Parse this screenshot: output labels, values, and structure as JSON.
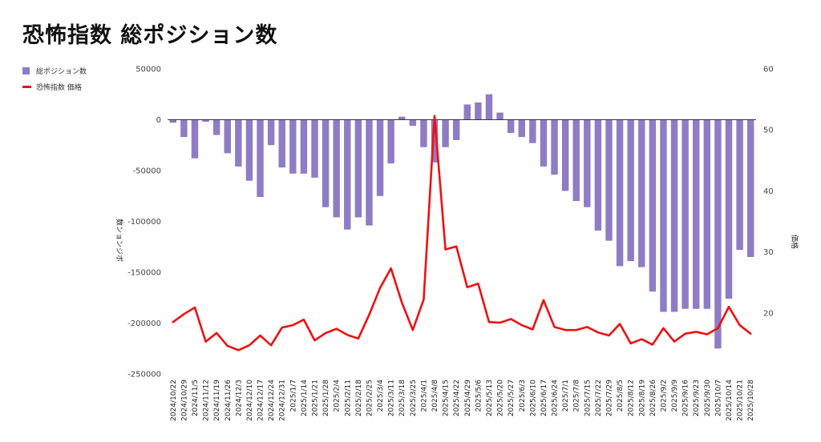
{
  "page": {
    "title": "恐怖指数 総ポジション数"
  },
  "legend": {
    "bar_label": "総ポジション数",
    "line_label": "恐怖指数 価格"
  },
  "chart_data": {
    "type": "bar+line",
    "title": "恐怖指数 総ポジション数",
    "ylabel_left": "数ンョンジボ",
    "ylabel_right": "価格",
    "ylim_left": [
      -250000,
      50000
    ],
    "ylim_right": [
      10,
      60
    ],
    "yticks_left": [
      50000,
      0,
      -50000,
      -100000,
      -150000,
      -200000,
      -250000
    ],
    "yticks_right": [
      60,
      50,
      40,
      30,
      20
    ],
    "grid": false,
    "categories": [
      "2024/10/22",
      "2024/10/29",
      "2024/11/5",
      "2024/11/12",
      "2024/11/19",
      "2024/11/26",
      "2024/12/3",
      "2024/12/10",
      "2024/12/17",
      "2024/12/24",
      "2024/12/31",
      "2025/1/7",
      "2025/1/14",
      "2025/1/21",
      "2025/1/28",
      "2025/2/4",
      "2025/2/11",
      "2025/2/18",
      "2025/2/25",
      "2025/3/4",
      "2025/3/11",
      "2025/3/18",
      "2025/3/25",
      "2025/4/1",
      "2025/4/8",
      "2025/4/15",
      "2025/4/22",
      "2025/4/29",
      "2025/5/6",
      "2025/5/13",
      "2025/5/20",
      "2025/5/27",
      "2025/6/3",
      "2025/6/10",
      "2025/6/17",
      "2025/6/24",
      "2025/7/1",
      "2025/7/8",
      "2025/7/15",
      "2025/7/22",
      "2025/7/29",
      "2025/8/5",
      "2025/8/12",
      "2025/8/19",
      "2025/8/26",
      "2025/9/2",
      "2025/9/9",
      "2025/9/16",
      "2025/9/23",
      "2025/9/30",
      "2025/10/7",
      "2025/10/14",
      "2025/10/21",
      "2025/10/28"
    ],
    "series": [
      {
        "name": "総ポジション数",
        "type": "bar",
        "axis": "left",
        "color": "#8f7cc5",
        "values": [
          -3000,
          -17000,
          -38000,
          -2000,
          -15000,
          -33000,
          -46000,
          -60000,
          -76000,
          -25000,
          -47000,
          -53000,
          -53000,
          -57000,
          -86000,
          -96000,
          -108000,
          -96000,
          -104000,
          -75000,
          -43000,
          3000,
          -6000,
          -27000,
          -42000,
          -27000,
          -20000,
          15000,
          17000,
          25000,
          7000,
          -13000,
          -17000,
          -23000,
          -46000,
          -54000,
          -70000,
          -80000,
          -86000,
          -109000,
          -119000,
          -144000,
          -139000,
          -145000,
          -169000,
          -189000,
          -189000,
          -186000,
          -186000,
          -186000,
          -225000,
          -176000,
          -128000,
          -135000
        ]
      },
      {
        "name": "恐怖指数 価格",
        "type": "line",
        "axis": "right",
        "color": "#f01010",
        "values": [
          18.5,
          19.8,
          20.9,
          15.3,
          16.7,
          14.6,
          13.9,
          14.7,
          16.3,
          14.7,
          17.6,
          18.0,
          18.9,
          15.5,
          16.7,
          17.4,
          16.4,
          15.8,
          19.7,
          24.1,
          27.3,
          21.7,
          17.2,
          22.2,
          52.3,
          30.4,
          30.9,
          24.2,
          24.8,
          18.5,
          18.4,
          19.0,
          18.0,
          17.3,
          22.1,
          17.7,
          17.2,
          17.2,
          17.7,
          16.8,
          16.3,
          18.2,
          15.0,
          15.7,
          14.8,
          17.5,
          15.3,
          16.6,
          16.9,
          16.5,
          17.5,
          21.0,
          18.0,
          16.6
        ]
      }
    ]
  }
}
